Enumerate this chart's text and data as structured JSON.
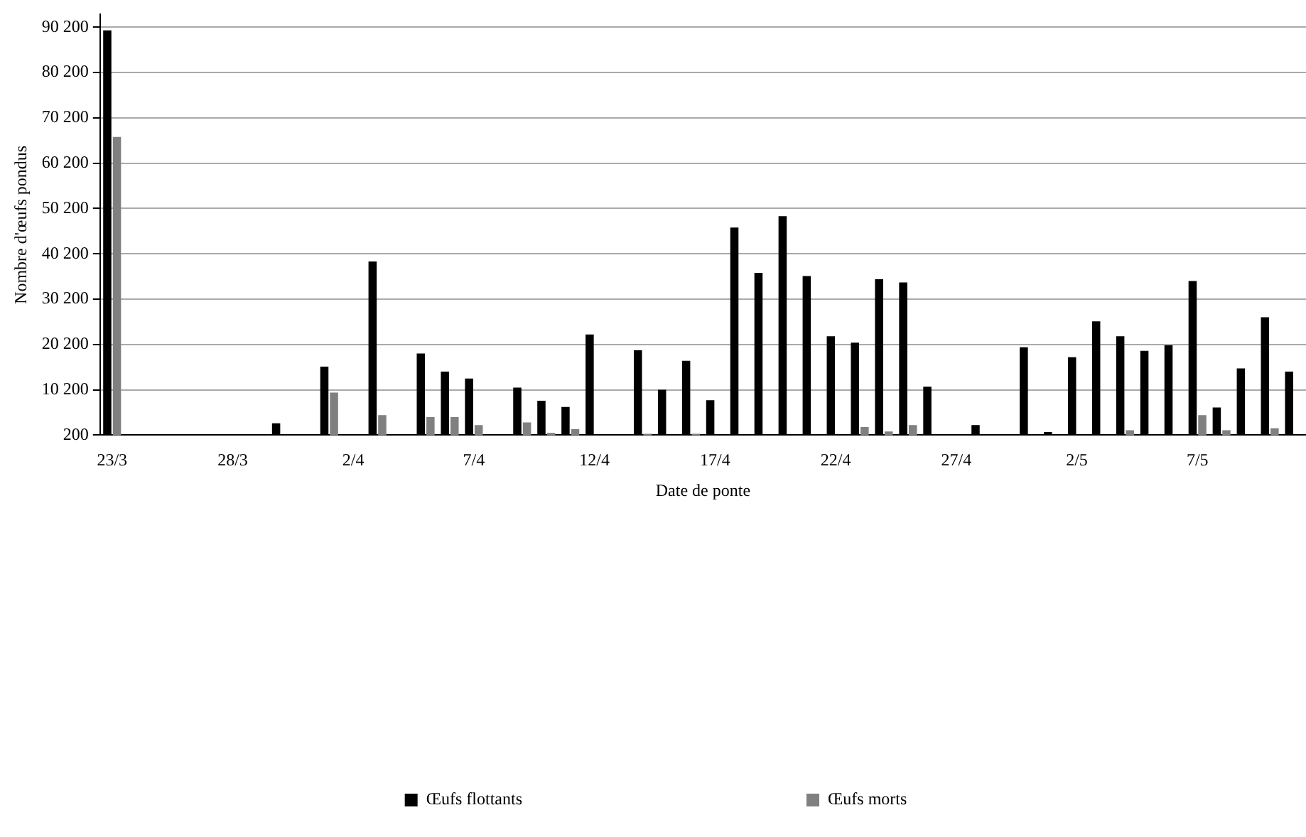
{
  "chart_data": {
    "type": "bar",
    "xlabel": "Date de ponte",
    "ylabel": "Nombre d'œufs pondus",
    "categories": [
      "23/3",
      null,
      null,
      null,
      null,
      "28/3",
      null,
      null,
      null,
      null,
      "2/4",
      null,
      null,
      null,
      null,
      "7/4",
      null,
      null,
      null,
      null,
      "12/4",
      null,
      null,
      null,
      null,
      "17/4",
      null,
      null,
      null,
      null,
      "22/4",
      null,
      null,
      null,
      null,
      "27/4",
      null,
      null,
      null,
      null,
      "2/5",
      null,
      null,
      null,
      null,
      "7/5",
      null,
      null,
      null,
      null
    ],
    "series": [
      {
        "name": "Œufs flottants",
        "color": "#000000",
        "values": [
          89500,
          null,
          null,
          null,
          null,
          null,
          null,
          2800,
          null,
          15300,
          null,
          38500,
          null,
          18200,
          14200,
          12700,
          null,
          10700,
          7800,
          6400,
          22400,
          null,
          18900,
          10200,
          16600,
          7900,
          46000,
          36000,
          48500,
          35300,
          22000,
          20600,
          34600,
          33900,
          10900,
          null,
          2400,
          null,
          19600,
          900,
          17400,
          25300,
          22000,
          18800,
          20000,
          34200,
          6300,
          14900,
          26200,
          14200
        ]
      },
      {
        "name": "Œufs morts",
        "color": "#808080",
        "values": [
          66000,
          null,
          null,
          null,
          null,
          null,
          null,
          null,
          null,
          9600,
          null,
          4600,
          null,
          4200,
          4200,
          2400,
          null,
          3000,
          700,
          1500,
          null,
          null,
          500,
          null,
          500,
          null,
          null,
          null,
          null,
          null,
          null,
          2000,
          1000,
          2400,
          null,
          null,
          null,
          null,
          null,
          null,
          null,
          null,
          1300,
          null,
          null,
          4600,
          1300,
          null,
          1700,
          null
        ]
      }
    ],
    "ylim": [
      200,
      93000
    ],
    "yticks": [
      {
        "value": 200,
        "label": "200"
      },
      {
        "value": 10200,
        "label": "10 200"
      },
      {
        "value": 20200,
        "label": "20 200"
      },
      {
        "value": 30200,
        "label": "30 200"
      },
      {
        "value": 40200,
        "label": "40 200"
      },
      {
        "value": 50200,
        "label": "50 200"
      },
      {
        "value": 60200,
        "label": "60 200"
      },
      {
        "value": 70200,
        "label": "70 200"
      },
      {
        "value": 80200,
        "label": "80 200"
      },
      {
        "value": 90200,
        "label": "90 200"
      }
    ],
    "grid": "y",
    "legend": "bottom"
  }
}
